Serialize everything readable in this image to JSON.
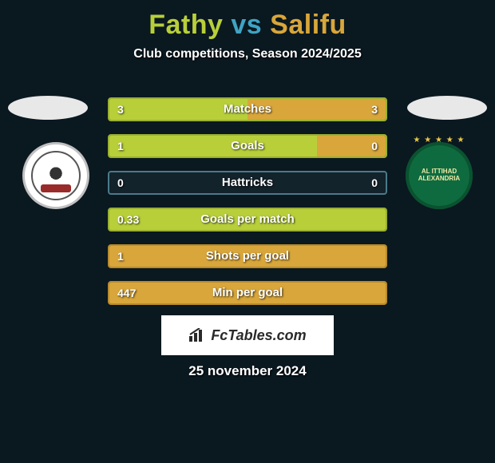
{
  "title": {
    "player1": "Fathy",
    "vs": "vs",
    "player2": "Salifu",
    "p1_color": "#b8cf3a",
    "vs_color": "#3fa4c4",
    "p2_color": "#d8a63a"
  },
  "subtitle": "Club competitions, Season 2024/2025",
  "colors": {
    "p1_fill": "#b8cf3a",
    "p2_fill": "#d8a63a",
    "border_p1": "#9ab030",
    "border_p2": "#b88a2e",
    "border_neutral": "#4a7a8a",
    "track_bg": "#13232b"
  },
  "stats": [
    {
      "label": "Matches",
      "v1": "3",
      "v2": "3",
      "f1": 50,
      "f2": 50,
      "mode": "both"
    },
    {
      "label": "Goals",
      "v1": "1",
      "v2": "0",
      "f1": 75,
      "f2": 25,
      "mode": "p1p2"
    },
    {
      "label": "Hattricks",
      "v1": "0",
      "v2": "0",
      "f1": 0,
      "f2": 0,
      "mode": "empty"
    },
    {
      "label": "Goals per match",
      "v1": "0.33",
      "v2": "",
      "f1": 100,
      "f2": 0,
      "mode": "p1only"
    },
    {
      "label": "Shots per goal",
      "v1": "1",
      "v2": "",
      "f1": 100,
      "f2": 0,
      "mode": "p2only_fill"
    },
    {
      "label": "Min per goal",
      "v1": "447",
      "v2": "",
      "f1": 100,
      "f2": 0,
      "mode": "p2only_fill"
    }
  ],
  "logo_text": "FcTables.com",
  "date": "25 november 2024"
}
